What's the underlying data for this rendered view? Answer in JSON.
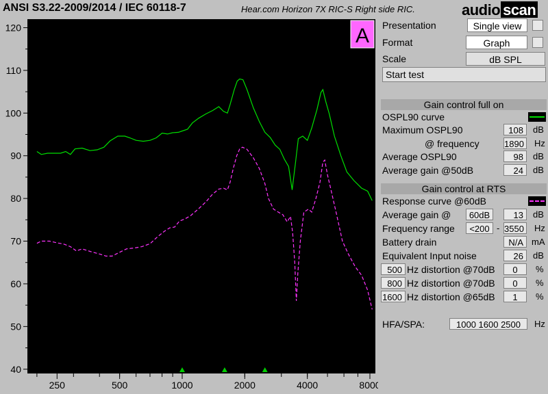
{
  "header": {
    "standard": "ANSI S3.22-2009/2014 / IEC 60118-7",
    "device": "Hear.com Horizon 7X RIC-S Right side RIC.",
    "logo_a": "audio",
    "logo_b": "scan"
  },
  "colors": {
    "ospl90": "#00e000",
    "response": "#ff33ff",
    "badge": "#ff66ff",
    "marker": "#00cc00"
  },
  "panel": {
    "presentation_label": "Presentation",
    "presentation_value": "Single view",
    "format_label": "Format",
    "format_value": "Graph",
    "scale_label": "Scale",
    "scale_value": "dB SPL",
    "start_test": "Start test",
    "full_on": {
      "title": "Gain control full on",
      "curve_label": "OSPL90 curve",
      "max_label": "Maximum OSPL90",
      "max_value": "108",
      "max_unit": "dB",
      "freq_label": "@ frequency",
      "freq_value": "1890",
      "freq_unit": "Hz",
      "avg_label": "Average OSPL90",
      "avg_value": "98",
      "avg_unit": "dB",
      "gain_label": "Average gain @50dB",
      "gain_value": "24",
      "gain_unit": "dB"
    },
    "rts": {
      "title": "Gain control at RTS",
      "curve_label": "Response curve @60dB",
      "avg_gain_label": "Average gain @",
      "avg_gain_input": "60dB",
      "avg_gain_value": "13",
      "avg_gain_unit": "dB",
      "range_label": "Frequency range",
      "range_low": "<200",
      "range_sep": "-",
      "range_high": "3550",
      "range_unit": "Hz",
      "battery_label": "Battery drain",
      "battery_value": "N/A",
      "battery_unit": "mA",
      "noise_label": "Equivalent Input noise",
      "noise_value": "26",
      "noise_unit": "dB",
      "distortion": [
        {
          "freq": "500",
          "label": "Hz distortion @70dB",
          "value": "0",
          "unit": "%"
        },
        {
          "freq": "800",
          "label": "Hz distortion @70dB",
          "value": "0",
          "unit": "%"
        },
        {
          "freq": "1600",
          "label": "Hz distortion @65dB",
          "value": "1",
          "unit": "%"
        }
      ]
    },
    "hfa_label": "HFA/SPA:",
    "hfa_value": "1000 1600 2500",
    "hfa_unit": "Hz"
  },
  "chart_data": {
    "type": "line",
    "badge": "A",
    "xscale": "log",
    "xlim": [
      180,
      8500
    ],
    "ylim": [
      39,
      122
    ],
    "yticks": [
      40,
      50,
      60,
      70,
      80,
      90,
      100,
      110,
      120
    ],
    "xticks": [
      250,
      500,
      1000,
      2000,
      4000,
      8000
    ],
    "markers_x": [
      1000,
      1600,
      2500
    ],
    "series": [
      {
        "name": "OSPL90 curve",
        "style": "solid",
        "points": [
          [
            200,
            91
          ],
          [
            210,
            90.3
          ],
          [
            225,
            90.6
          ],
          [
            260,
            90.6
          ],
          [
            275,
            91
          ],
          [
            290,
            90.3
          ],
          [
            305,
            91.6
          ],
          [
            330,
            91.8
          ],
          [
            360,
            91.2
          ],
          [
            390,
            91.4
          ],
          [
            420,
            92
          ],
          [
            450,
            93.5
          ],
          [
            490,
            94.6
          ],
          [
            530,
            94.6
          ],
          [
            560,
            94.2
          ],
          [
            600,
            93.6
          ],
          [
            650,
            93.4
          ],
          [
            700,
            93.6
          ],
          [
            750,
            94.2
          ],
          [
            800,
            95.3
          ],
          [
            850,
            95.1
          ],
          [
            900,
            95.4
          ],
          [
            960,
            95.5
          ],
          [
            1000,
            95.8
          ],
          [
            1060,
            96.2
          ],
          [
            1120,
            97.7
          ],
          [
            1200,
            98.8
          ],
          [
            1300,
            99.8
          ],
          [
            1400,
            100.6
          ],
          [
            1500,
            101.5
          ],
          [
            1580,
            100.4
          ],
          [
            1650,
            100
          ],
          [
            1700,
            102
          ],
          [
            1780,
            105.5
          ],
          [
            1840,
            107.5
          ],
          [
            1890,
            108
          ],
          [
            1960,
            107.8
          ],
          [
            2050,
            105.5
          ],
          [
            2200,
            101.2
          ],
          [
            2350,
            98
          ],
          [
            2500,
            95.5
          ],
          [
            2650,
            94.3
          ],
          [
            2800,
            92.5
          ],
          [
            2950,
            91.5
          ],
          [
            3100,
            89.2
          ],
          [
            3250,
            87.5
          ],
          [
            3380,
            82
          ],
          [
            3500,
            88
          ],
          [
            3620,
            94
          ],
          [
            3800,
            94.6
          ],
          [
            4000,
            93.6
          ],
          [
            4200,
            96.5
          ],
          [
            4450,
            100.8
          ],
          [
            4650,
            104.8
          ],
          [
            4750,
            105.5
          ],
          [
            4900,
            102.8
          ],
          [
            5100,
            99.8
          ],
          [
            5400,
            94.6
          ],
          [
            5800,
            90
          ],
          [
            6200,
            86.2
          ],
          [
            6700,
            84.2
          ],
          [
            7300,
            82.4
          ],
          [
            7800,
            81.7
          ],
          [
            8200,
            79.5
          ]
        ]
      },
      {
        "name": "Response curve @60dB",
        "style": "dashed",
        "points": [
          [
            200,
            69.5
          ],
          [
            210,
            70
          ],
          [
            230,
            70
          ],
          [
            250,
            69.6
          ],
          [
            270,
            69.3
          ],
          [
            290,
            68.7
          ],
          [
            310,
            67.7
          ],
          [
            330,
            68.2
          ],
          [
            360,
            67.6
          ],
          [
            400,
            67
          ],
          [
            430,
            66.5
          ],
          [
            460,
            66.5
          ],
          [
            500,
            67.4
          ],
          [
            540,
            68.2
          ],
          [
            590,
            68.4
          ],
          [
            640,
            68.7
          ],
          [
            700,
            69.4
          ],
          [
            760,
            71
          ],
          [
            820,
            72.3
          ],
          [
            870,
            73.1
          ],
          [
            920,
            73.3
          ],
          [
            970,
            74.7
          ],
          [
            1030,
            75.2
          ],
          [
            1100,
            76
          ],
          [
            1200,
            77.6
          ],
          [
            1300,
            79.2
          ],
          [
            1400,
            81
          ],
          [
            1500,
            82.2
          ],
          [
            1580,
            82.4
          ],
          [
            1650,
            82
          ],
          [
            1700,
            83.8
          ],
          [
            1760,
            87
          ],
          [
            1830,
            90
          ],
          [
            1890,
            91.6
          ],
          [
            1950,
            92
          ],
          [
            2050,
            91.5
          ],
          [
            2200,
            89.5
          ],
          [
            2350,
            87
          ],
          [
            2500,
            83.5
          ],
          [
            2600,
            80
          ],
          [
            2750,
            77.5
          ],
          [
            2900,
            76.8
          ],
          [
            3050,
            76.2
          ],
          [
            3200,
            74.5
          ],
          [
            3320,
            75.8
          ],
          [
            3400,
            72
          ],
          [
            3480,
            65
          ],
          [
            3540,
            56
          ],
          [
            3600,
            62.5
          ],
          [
            3700,
            70
          ],
          [
            3850,
            76.8
          ],
          [
            4050,
            77.5
          ],
          [
            4200,
            76.8
          ],
          [
            4400,
            80
          ],
          [
            4600,
            83.8
          ],
          [
            4750,
            88.5
          ],
          [
            4850,
            89
          ],
          [
            5000,
            85.5
          ],
          [
            5200,
            82
          ],
          [
            5500,
            76.8
          ],
          [
            5900,
            70
          ],
          [
            6300,
            67
          ],
          [
            6800,
            64
          ],
          [
            7300,
            62
          ],
          [
            7800,
            58.5
          ],
          [
            8200,
            54
          ]
        ]
      }
    ]
  }
}
